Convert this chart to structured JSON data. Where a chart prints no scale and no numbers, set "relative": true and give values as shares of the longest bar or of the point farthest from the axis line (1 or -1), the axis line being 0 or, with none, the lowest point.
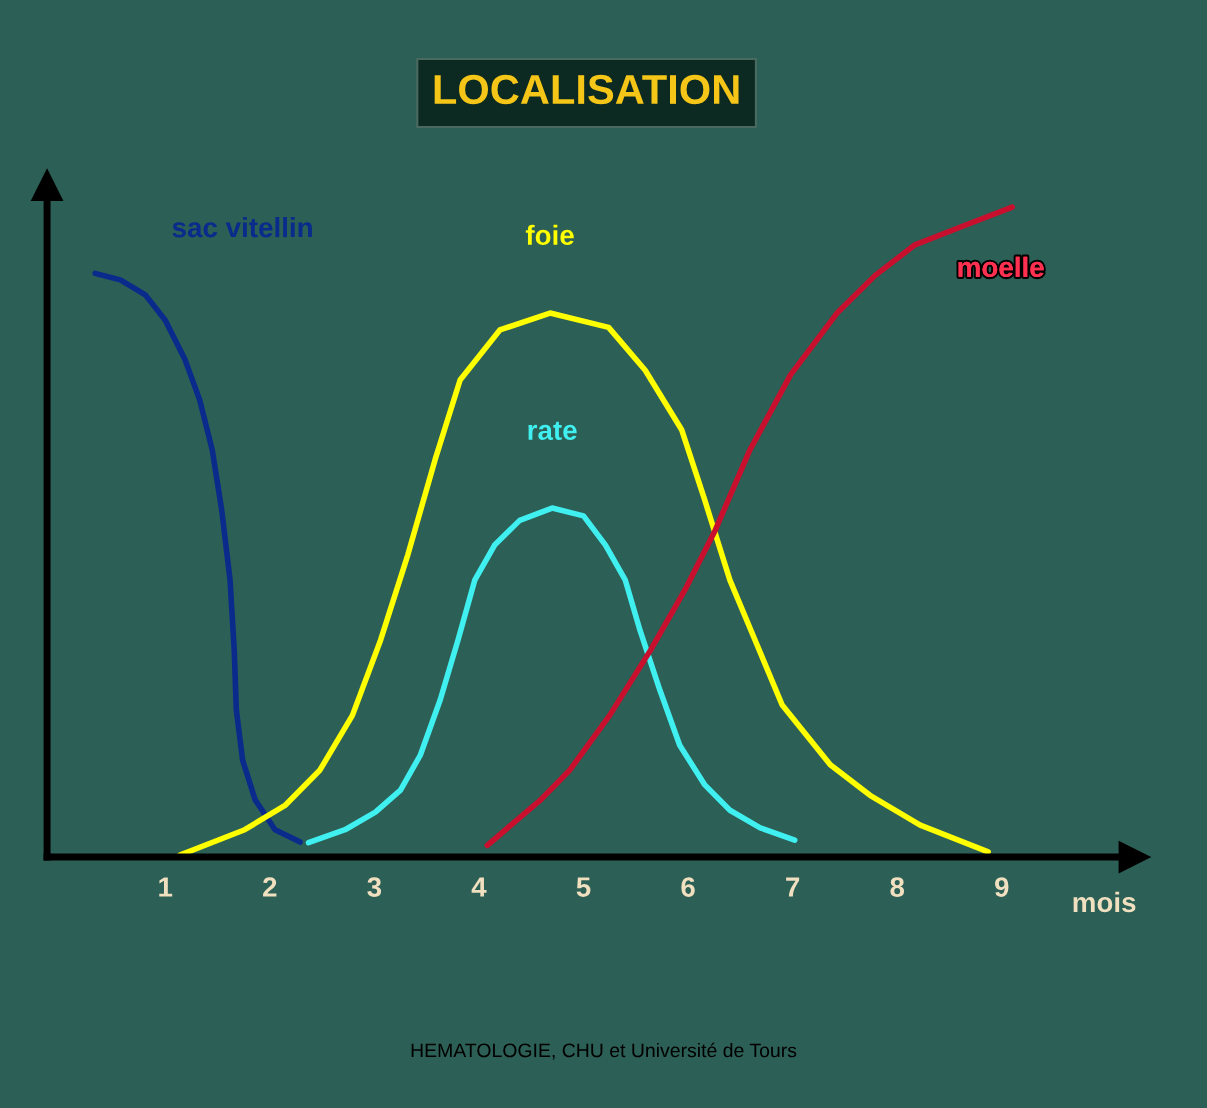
{
  "chart_data": {
    "type": "line",
    "title": "LOCALISATION",
    "xlabel": "mois",
    "relative": true,
    "xlim": [
      -0.13,
      10.27
    ],
    "xticks": [
      1,
      2,
      3,
      4,
      5,
      6,
      7,
      8,
      9
    ],
    "annotations": [
      "HEMATOLOGIE, CHU et Université de Tours"
    ],
    "series": [
      {
        "name": "sac vitellin",
        "color": "#0a2a8c",
        "x": [
          0.33,
          0.57,
          0.81,
          1.0,
          1.19,
          1.33,
          1.45,
          1.54,
          1.62,
          1.66,
          1.68,
          1.74,
          1.86,
          2.05,
          2.29
        ],
        "values": [
          0.898,
          0.888,
          0.865,
          0.826,
          0.765,
          0.703,
          0.626,
          0.534,
          0.426,
          0.318,
          0.226,
          0.149,
          0.088,
          0.042,
          0.023
        ]
      },
      {
        "name": "foie",
        "color": "#ffff00",
        "x": [
          1.14,
          1.76,
          2.15,
          2.48,
          2.79,
          3.06,
          3.32,
          3.58,
          3.82,
          4.2,
          4.68,
          5.24,
          5.59,
          5.94,
          6.16,
          6.4,
          6.64,
          6.9,
          7.36,
          7.74,
          8.22,
          8.87
        ],
        "values": [
          0.003,
          0.042,
          0.08,
          0.134,
          0.218,
          0.334,
          0.465,
          0.611,
          0.734,
          0.811,
          0.837,
          0.815,
          0.749,
          0.657,
          0.549,
          0.426,
          0.334,
          0.234,
          0.142,
          0.095,
          0.049,
          0.008
        ]
      },
      {
        "name": "rate",
        "color": "#40f0f0",
        "x": [
          2.37,
          2.72,
          3.01,
          3.25,
          3.44,
          3.63,
          3.8,
          3.96,
          4.15,
          4.39,
          4.7,
          5.0,
          5.21,
          5.4,
          5.54,
          5.73,
          5.92,
          6.16,
          6.4,
          6.69,
          7.02
        ],
        "values": [
          0.022,
          0.042,
          0.069,
          0.103,
          0.157,
          0.242,
          0.334,
          0.426,
          0.48,
          0.518,
          0.537,
          0.525,
          0.48,
          0.426,
          0.349,
          0.257,
          0.172,
          0.111,
          0.072,
          0.045,
          0.026
        ]
      },
      {
        "name": "moelle",
        "color": "#c8102e",
        "x": [
          4.08,
          4.59,
          4.87,
          5.25,
          5.64,
          5.97,
          6.26,
          6.59,
          6.98,
          7.43,
          7.79,
          8.17,
          8.6,
          9.1
        ],
        "values": [
          0.018,
          0.088,
          0.134,
          0.218,
          0.318,
          0.411,
          0.503,
          0.626,
          0.742,
          0.838,
          0.895,
          0.942,
          0.969,
          1.0
        ]
      }
    ]
  }
}
